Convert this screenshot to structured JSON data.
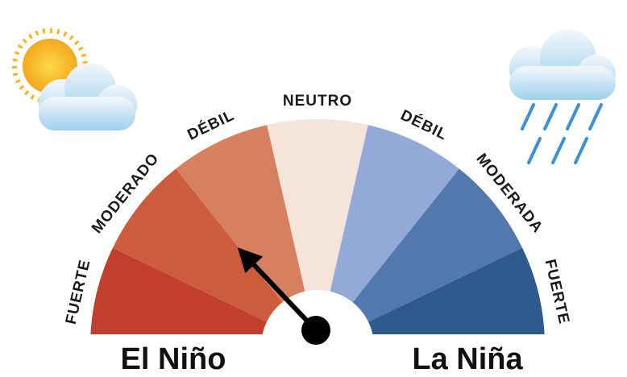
{
  "segments": [
    {
      "label": "FUERTE",
      "color": "#c23f2b"
    },
    {
      "label": "MODERADO",
      "color": "#cd5c3c"
    },
    {
      "label": "DÉBIL",
      "color": "#d6805f"
    },
    {
      "label": "NEUTRO",
      "color": "#f5e4da"
    },
    {
      "label": "DÉBIL",
      "color": "#93a9d7"
    },
    {
      "label": "MODERADA",
      "color": "#5378ae"
    },
    {
      "label": "FUERTE",
      "color": "#2f5a8e"
    }
  ],
  "left_label": "El Niño",
  "right_label": "La Niña"
}
